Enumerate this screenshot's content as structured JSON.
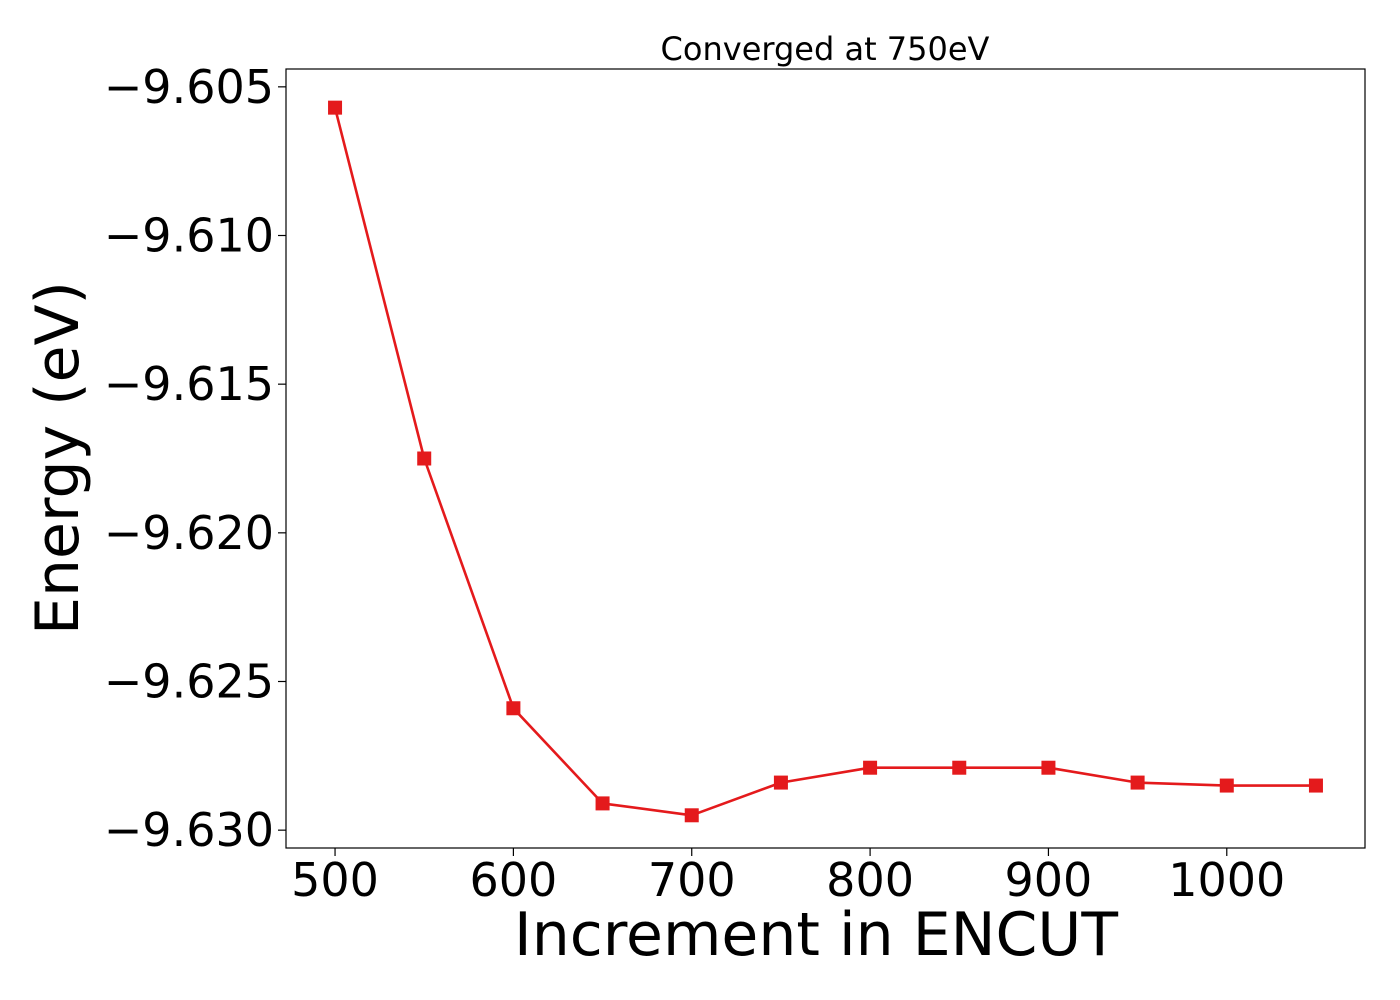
{
  "chart_data": {
    "type": "line",
    "title": "Converged at 750eV",
    "xlabel": "Increment in ENCUT",
    "ylabel": "Energy (eV)",
    "xlim": [
      472.5,
      1077.5
    ],
    "ylim": [
      -9.6306,
      -9.6044
    ],
    "xticks": [
      500,
      600,
      700,
      800,
      900,
      1000
    ],
    "xtick_labels": [
      "500",
      "600",
      "700",
      "800",
      "900",
      "1000"
    ],
    "yticks": [
      -9.605,
      -9.61,
      -9.615,
      -9.62,
      -9.625,
      -9.63
    ],
    "ytick_labels": [
      "−9.605",
      "−9.610",
      "−9.615",
      "−9.620",
      "−9.625",
      "−9.630"
    ],
    "grid": false,
    "series": [
      {
        "color": "#e41a1c",
        "marker": "square",
        "x": [
          500,
          550,
          600,
          650,
          700,
          750,
          800,
          850,
          900,
          950,
          1000,
          1050
        ],
        "y": [
          -9.6057,
          -9.6175,
          -9.6259,
          -9.6291,
          -9.6295,
          -9.6284,
          -9.6279,
          -9.6279,
          -9.6279,
          -9.6284,
          -9.6285,
          -9.6285
        ]
      }
    ]
  }
}
